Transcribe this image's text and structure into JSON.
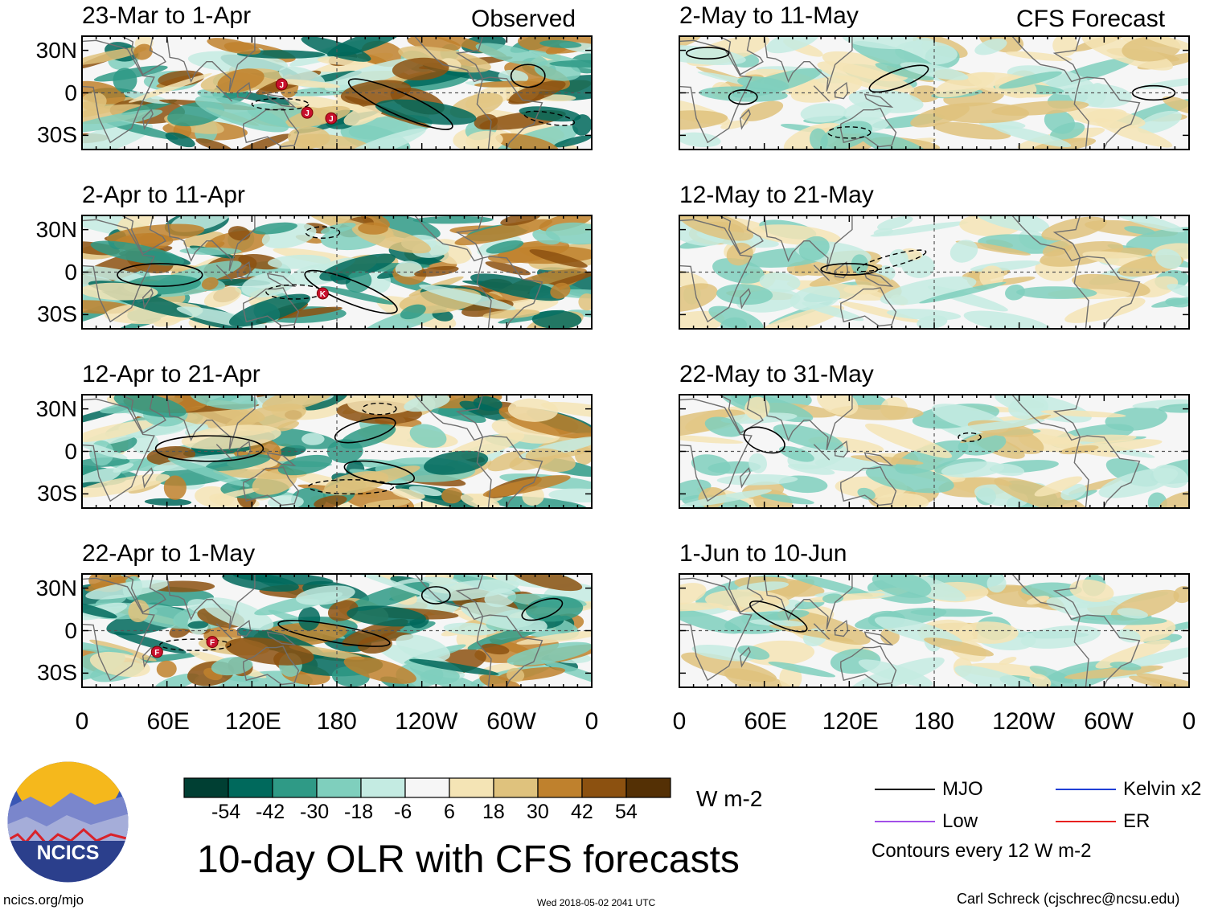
{
  "title": "10-day OLR with CFS forecasts",
  "units": "W m-2",
  "source_labels": {
    "observed": "Observed",
    "forecast": "CFS Forecast"
  },
  "lat_labels": [
    "30N",
    "0",
    "30S"
  ],
  "lon_labels": [
    "0",
    "60E",
    "120E",
    "180",
    "120W",
    "60W",
    "0"
  ],
  "panels": [
    {
      "id": "obs-1",
      "period": "23-Mar to 1-Apr",
      "type": "observed",
      "mjo": [
        {
          "lon": 225,
          "lat": -8,
          "rx": 40,
          "ry": 8,
          "rot": 24
        },
        {
          "lon": 315,
          "lat": 12,
          "rx": 12,
          "ry": 8,
          "rot": 0
        }
      ],
      "neg": [
        {
          "lon": 140,
          "lat": -8,
          "rx": 20,
          "ry": 4,
          "rot": 0
        },
        {
          "lon": 330,
          "lat": -18,
          "rx": 18,
          "ry": 4,
          "rot": 10
        }
      ],
      "storms": [
        {
          "label": "J",
          "lon": 141,
          "lat": 6
        },
        {
          "label": "J",
          "lon": 159,
          "lat": -14
        },
        {
          "label": "J",
          "lon": 176,
          "lat": -18
        }
      ]
    },
    {
      "id": "obs-2",
      "period": "2-Apr to 11-Apr",
      "type": "observed",
      "mjo": [
        {
          "lon": 190,
          "lat": -14,
          "rx": 35,
          "ry": 8,
          "rot": 22
        },
        {
          "lon": 55,
          "lat": -2,
          "rx": 30,
          "ry": 8,
          "rot": 0
        }
      ],
      "neg": [
        {
          "lon": 150,
          "lat": -14,
          "rx": 20,
          "ry": 5,
          "rot": 0
        },
        {
          "lon": 170,
          "lat": 28,
          "rx": 12,
          "ry": 4,
          "rot": 0
        }
      ],
      "storms": [
        {
          "label": "K",
          "lon": 170,
          "lat": -15
        }
      ]
    },
    {
      "id": "obs-3",
      "period": "12-Apr to 21-Apr",
      "type": "observed",
      "mjo": [
        {
          "lon": 90,
          "lat": 2,
          "rx": 38,
          "ry": 9,
          "rot": 0
        },
        {
          "lon": 210,
          "lat": -15,
          "rx": 25,
          "ry": 7,
          "rot": 10
        },
        {
          "lon": 200,
          "lat": 15,
          "rx": 22,
          "ry": 7,
          "rot": -15
        }
      ],
      "neg": [
        {
          "lon": 190,
          "lat": -25,
          "rx": 30,
          "ry": 5,
          "rot": 0
        },
        {
          "lon": 210,
          "lat": 30,
          "rx": 12,
          "ry": 4,
          "rot": 0
        }
      ],
      "storms": []
    },
    {
      "id": "obs-4",
      "period": "22-Apr to 1-May",
      "type": "observed",
      "mjo": [
        {
          "lon": 178,
          "lat": -2,
          "rx": 40,
          "ry": 6,
          "rot": 10
        },
        {
          "lon": 325,
          "lat": 15,
          "rx": 15,
          "ry": 6,
          "rot": -20
        },
        {
          "lon": 250,
          "lat": 25,
          "rx": 10,
          "ry": 6,
          "rot": 0
        }
      ],
      "neg": [
        {
          "lon": 80,
          "lat": -10,
          "rx": 25,
          "ry": 4,
          "rot": 0
        }
      ],
      "storms": [
        {
          "label": "F",
          "lon": 53,
          "lat": -15
        },
        {
          "label": "F",
          "lon": 92,
          "lat": -8
        }
      ]
    },
    {
      "id": "fcst-1",
      "period": "2-May to 11-May",
      "type": "forecast",
      "mjo": [
        {
          "lon": 20,
          "lat": 28,
          "rx": 15,
          "ry": 4,
          "rot": 0
        },
        {
          "lon": 45,
          "lat": -3,
          "rx": 10,
          "ry": 5,
          "rot": 0
        },
        {
          "lon": 155,
          "lat": 10,
          "rx": 22,
          "ry": 6,
          "rot": -20
        },
        {
          "lon": 335,
          "lat": 0,
          "rx": 15,
          "ry": 5,
          "rot": 0
        }
      ],
      "neg": [
        {
          "lon": 120,
          "lat": -28,
          "rx": 15,
          "ry": 4,
          "rot": 0
        }
      ],
      "storms": []
    },
    {
      "id": "fcst-2",
      "period": "12-May to 21-May",
      "type": "forecast",
      "mjo": [
        {
          "lon": 120,
          "lat": 2,
          "rx": 20,
          "ry": 4,
          "rot": 0
        }
      ],
      "neg": [
        {
          "lon": 150,
          "lat": 8,
          "rx": 25,
          "ry": 4,
          "rot": -15
        }
      ],
      "storms": []
    },
    {
      "id": "fcst-3",
      "period": "22-May to 31-May",
      "type": "forecast",
      "mjo": [
        {
          "lon": 60,
          "lat": 8,
          "rx": 15,
          "ry": 8,
          "rot": 20
        }
      ],
      "neg": [
        {
          "lon": 205,
          "lat": 10,
          "rx": 8,
          "ry": 3,
          "rot": 0
        }
      ],
      "storms": []
    },
    {
      "id": "fcst-4",
      "period": "1-Jun to 10-Jun",
      "type": "forecast",
      "mjo": [
        {
          "lon": 70,
          "lat": 10,
          "rx": 22,
          "ry": 6,
          "rot": 25
        }
      ],
      "neg": [],
      "storms": []
    }
  ],
  "colorbar": {
    "colors": [
      "#003f33",
      "#00695c",
      "#2f9a86",
      "#7fcfbd",
      "#c4ebe2",
      "#f6f6f6",
      "#f4e4b5",
      "#dfc27d",
      "#bf812d",
      "#8c5110",
      "#543005"
    ],
    "labels": [
      "-54",
      "-42",
      "-30",
      "-18",
      "-6",
      "6",
      "18",
      "30",
      "42",
      "54"
    ]
  },
  "legend": {
    "items": [
      {
        "label": "MJO",
        "color": "#000000"
      },
      {
        "label": "Kelvin x2",
        "color": "#1f3fd6"
      },
      {
        "label": "Low",
        "color": "#a24fe8"
      },
      {
        "label": "ER",
        "color": "#e8201f"
      }
    ],
    "note": "Contours every 12 W m-2"
  },
  "logo": {
    "text": "NCICS",
    "colors": {
      "sun": "#f5b81c",
      "sky": "#3a57b5",
      "mountain": "#2b3f8c",
      "line": "#d9222a"
    }
  },
  "footer": {
    "url": "ncics.org/mjo",
    "timestamp": "Wed 2018-05-02 2041 UTC",
    "author": "Carl Schreck (cjschrec@ncsu.edu)"
  }
}
